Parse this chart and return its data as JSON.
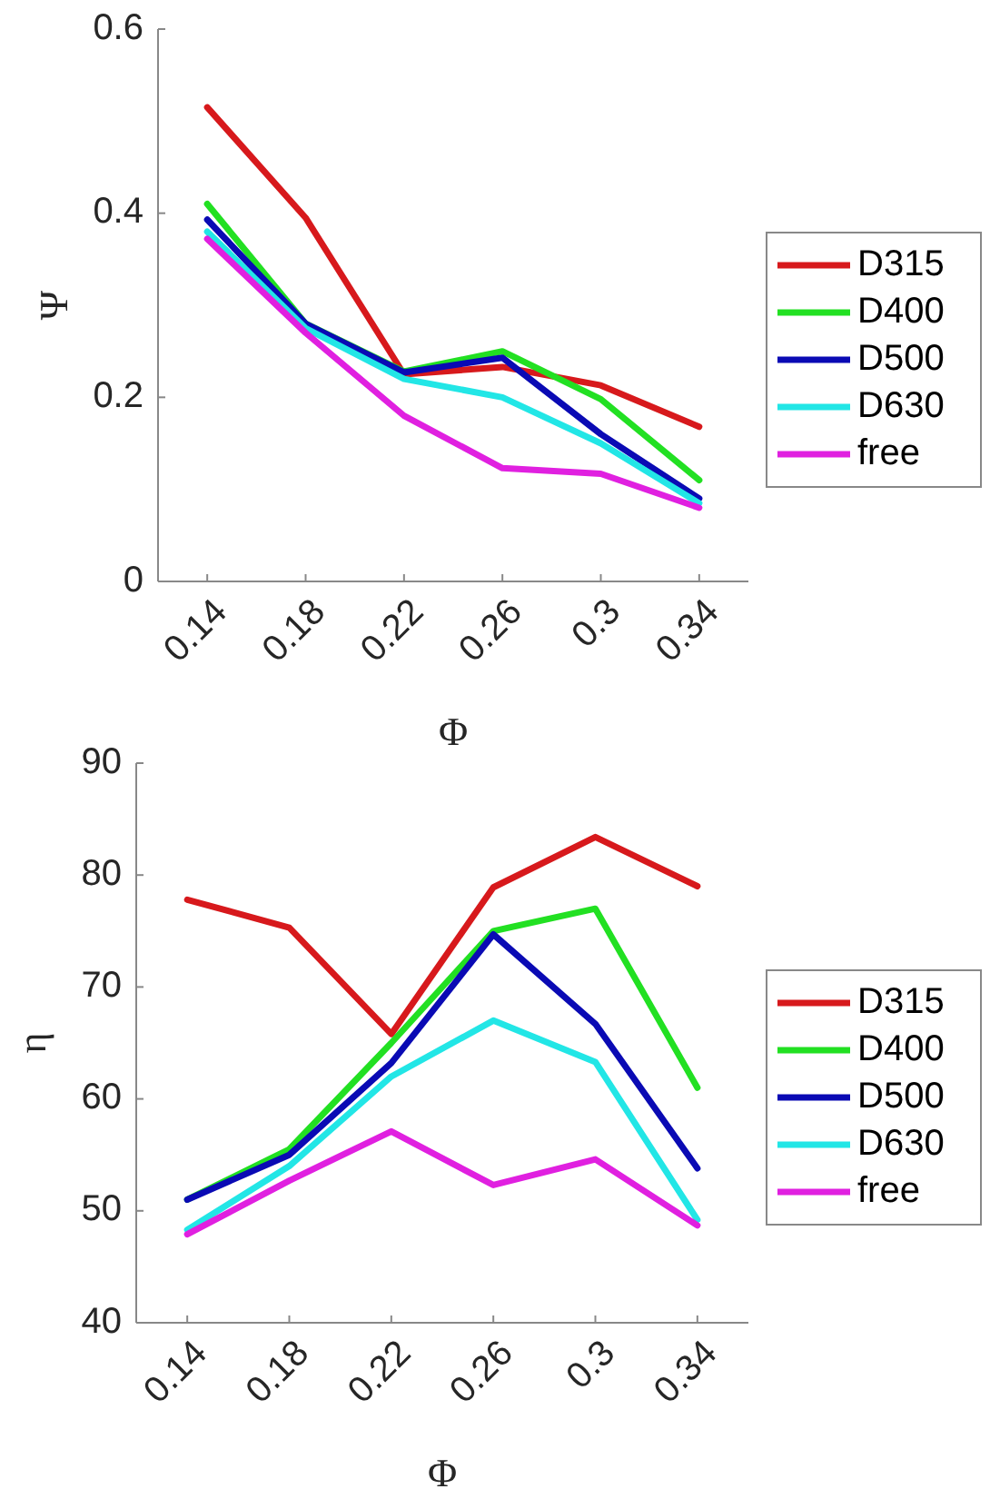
{
  "chart_data": [
    {
      "type": "line",
      "xlabel": "Φ",
      "ylabel": "Ψ",
      "x": [
        0.14,
        0.18,
        0.22,
        0.26,
        0.3,
        0.34
      ],
      "xlim": [
        0.12,
        0.36
      ],
      "xticks": [
        0.14,
        0.18,
        0.22,
        0.26,
        0.3,
        0.34
      ],
      "ylim": [
        0,
        0.6
      ],
      "yticks": [
        0,
        0.2,
        0.4,
        0.6
      ],
      "legend": "right",
      "grid": false,
      "line_style": "solid",
      "series": [
        {
          "name": "D315",
          "color": "#d7191c",
          "values": [
            0.515,
            0.395,
            0.225,
            0.233,
            0.213,
            0.168
          ]
        },
        {
          "name": "D400",
          "color": "#22e022",
          "values": [
            0.41,
            0.28,
            0.228,
            0.25,
            0.198,
            0.11
          ]
        },
        {
          "name": "D500",
          "color": "#0a0ab4",
          "values": [
            0.393,
            0.28,
            0.227,
            0.243,
            0.16,
            0.09
          ]
        },
        {
          "name": "D630",
          "color": "#22e6e6",
          "values": [
            0.38,
            0.275,
            0.22,
            0.2,
            0.15,
            0.085
          ]
        },
        {
          "name": "free",
          "color": "#e020e0",
          "values": [
            0.372,
            0.27,
            0.18,
            0.123,
            0.117,
            0.08
          ]
        }
      ]
    },
    {
      "type": "line",
      "xlabel": "Φ",
      "ylabel": "η",
      "x": [
        0.14,
        0.18,
        0.22,
        0.26,
        0.3,
        0.34
      ],
      "xlim": [
        0.12,
        0.36
      ],
      "xticks": [
        0.14,
        0.18,
        0.22,
        0.26,
        0.3,
        0.34
      ],
      "ylim": [
        40,
        90
      ],
      "yticks": [
        40,
        50,
        60,
        70,
        80,
        90
      ],
      "legend": "right",
      "grid": false,
      "line_style": "solid",
      "series": [
        {
          "name": "D315",
          "color": "#d7191c",
          "values": [
            77.8,
            75.3,
            65.8,
            78.9,
            83.4,
            79
          ]
        },
        {
          "name": "D400",
          "color": "#22e022",
          "values": [
            51,
            55.5,
            65,
            75,
            77,
            61
          ]
        },
        {
          "name": "D500",
          "color": "#0a0ab4",
          "values": [
            51,
            55,
            63.2,
            74.7,
            66.7,
            53.8
          ]
        },
        {
          "name": "D630",
          "color": "#22e6e6",
          "values": [
            48.3,
            54,
            62,
            67,
            63.3,
            49.2
          ]
        },
        {
          "name": "free",
          "color": "#e020e0",
          "values": [
            47.9,
            52.7,
            57.1,
            52.3,
            54.6,
            48.7
          ]
        }
      ]
    }
  ]
}
